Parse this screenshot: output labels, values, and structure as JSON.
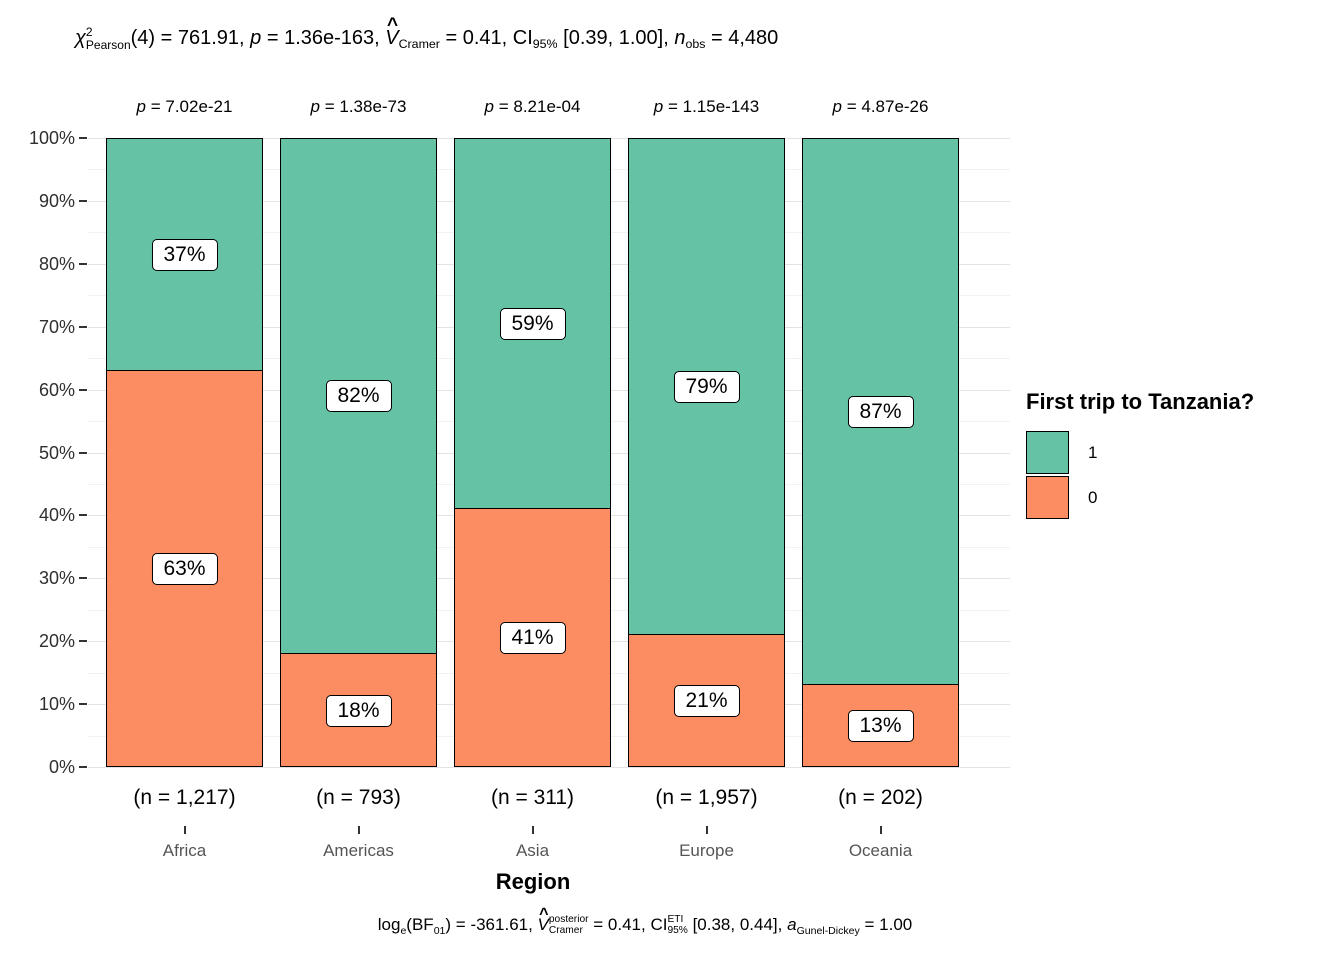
{
  "stats_title": {
    "segments": [
      {
        "s": "i",
        "t": "χ"
      },
      {
        "s": "supsub",
        "sup": "2",
        "sub": "Pearson"
      },
      {
        "s": "n",
        "t": "(4) = 761.91, "
      },
      {
        "s": "i",
        "t": "p"
      },
      {
        "s": "n",
        "t": " = 1.36e-163, "
      },
      {
        "s": "ihat",
        "t": "V"
      },
      {
        "s": "sub",
        "t": "Cramer"
      },
      {
        "s": "n",
        "t": " = 0.41, CI"
      },
      {
        "s": "sub",
        "t": "95%"
      },
      {
        "s": "n",
        "t": " [0.39, 1.00], "
      },
      {
        "s": "i",
        "t": "n"
      },
      {
        "s": "sub",
        "t": "obs"
      },
      {
        "s": "n",
        "t": " = 4,480"
      }
    ]
  },
  "caption": {
    "segments": [
      {
        "s": "n",
        "t": "log"
      },
      {
        "s": "sub",
        "t": "e"
      },
      {
        "s": "n",
        "t": "(BF"
      },
      {
        "s": "sub",
        "t": "01"
      },
      {
        "s": "n",
        "t": ") = -361.61, "
      },
      {
        "s": "ihat",
        "t": "V"
      },
      {
        "s": "supsub",
        "sup": "posterior",
        "sub": "Cramer"
      },
      {
        "s": "n",
        "t": " = 0.41, CI"
      },
      {
        "s": "supsub",
        "sup": "ETI",
        "sub": "95%"
      },
      {
        "s": "n",
        "t": " [0.38, 0.44], "
      },
      {
        "s": "i",
        "t": "a"
      },
      {
        "s": "sub",
        "t": "Gunel-Dickey"
      },
      {
        "s": "n",
        "t": " = 1.00"
      }
    ]
  },
  "legend": {
    "title": "First trip to Tanzania?",
    "items": [
      {
        "label": "1",
        "color": "#66C2A5"
      },
      {
        "label": "0",
        "color": "#FC8D62"
      }
    ]
  },
  "chart_data": {
    "type": "bar",
    "stacked": true,
    "percent": true,
    "xlabel": "Region",
    "ylabel": "",
    "categories": [
      "Africa",
      "Americas",
      "Asia",
      "Europe",
      "Oceania"
    ],
    "sample_sizes": [
      "(n = 1,217)",
      "(n = 793)",
      "(n = 311)",
      "(n = 1,957)",
      "(n = 202)"
    ],
    "p_values": [
      "7.02e-21",
      "1.38e-73",
      "8.21e-04",
      "1.15e-143",
      "4.87e-26"
    ],
    "p_prefix": "p",
    "series": [
      {
        "name": "1",
        "color": "#66C2A5",
        "values": [
          37,
          82,
          59,
          79,
          87
        ],
        "labels": [
          "37%",
          "82%",
          "59%",
          "79%",
          "87%"
        ]
      },
      {
        "name": "0",
        "color": "#FC8D62",
        "values": [
          63,
          18,
          41,
          21,
          13
        ],
        "labels": [
          "63%",
          "18%",
          "41%",
          "21%",
          "13%"
        ]
      }
    ],
    "y_ticks": [
      "0%",
      "10%",
      "20%",
      "30%",
      "40%",
      "50%",
      "60%",
      "70%",
      "80%",
      "90%",
      "100%"
    ],
    "ylim": [
      0,
      100
    ],
    "grid": "horizontal major+minor",
    "legend_position": "right",
    "bar_border_color": "#000000"
  }
}
